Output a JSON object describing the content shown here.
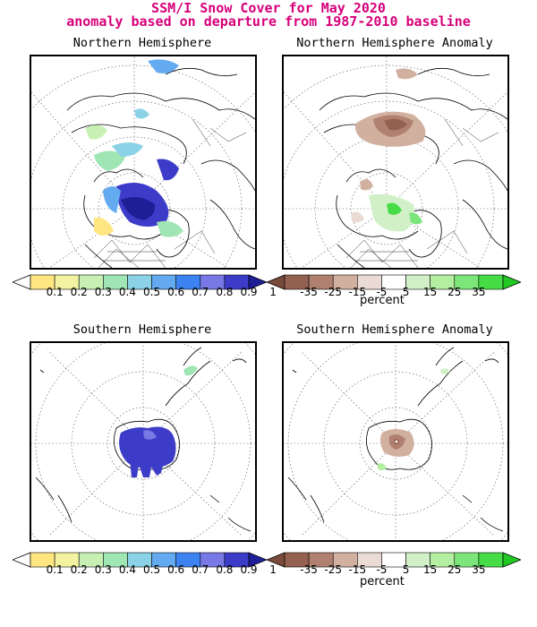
{
  "title": {
    "line1": "SSM/I Snow Cover for May 2020",
    "line2": "anomaly based on departure from 1987-2010 baseline"
  },
  "panels": {
    "nh": "Northern Hemisphere",
    "nh_anom": "Northern Hemisphere Anomaly",
    "sh": "Southern Hemisphere",
    "sh_anom": "Southern Hemisphere Anomaly"
  },
  "colorbars": {
    "fraction": {
      "ticks": [
        "0.1",
        "0.2",
        "0.3",
        "0.4",
        "0.5",
        "0.6",
        "0.7",
        "0.8",
        "0.9",
        "1"
      ],
      "colors": [
        "#ffffff",
        "#ffe680",
        "#f2f2a0",
        "#c8f0b4",
        "#a0e6b4",
        "#8cd2e6",
        "#64aaf0",
        "#3c82f0",
        "#7878e6",
        "#3c3cc8",
        "#1e1e96"
      ]
    },
    "anomaly": {
      "unit": "percent",
      "ticks": [
        "-35",
        "-25",
        "-15",
        "-5",
        "5",
        "15",
        "25",
        "35"
      ],
      "colors": [
        "#7a4a3a",
        "#946050",
        "#b08070",
        "#d2b0a0",
        "#eadcd4",
        "#ffffff",
        "#d2f0c8",
        "#b4eea0",
        "#7de67a",
        "#46dc46",
        "#22c822"
      ]
    }
  },
  "colors": {
    "title": "#d6007a",
    "snow_max": "#3c3cc8",
    "loss": "#a07060",
    "gain": "#46dc46"
  }
}
